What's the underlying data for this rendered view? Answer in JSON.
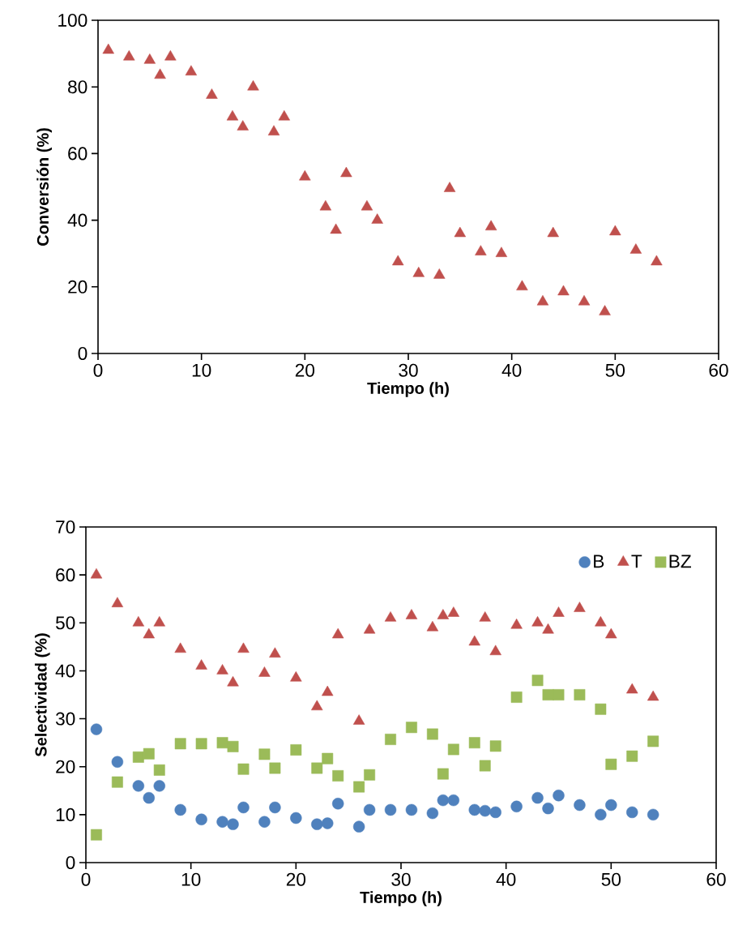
{
  "chart_data": [
    {
      "type": "scatter",
      "xlabel": "Tiempo (h)",
      "ylabel": "Conversión (%)",
      "xlim": [
        0,
        60
      ],
      "ylim": [
        0,
        100
      ],
      "xticks": [
        0,
        10,
        20,
        30,
        40,
        50,
        60
      ],
      "yticks": [
        0,
        20,
        40,
        60,
        80,
        100
      ],
      "grid": false,
      "marker": "triangle",
      "x": [
        1,
        3,
        5,
        6,
        7,
        9,
        11,
        13,
        14,
        15,
        17,
        18,
        20,
        22,
        23,
        24,
        26,
        27,
        29,
        31,
        33,
        34,
        35,
        37,
        38,
        39,
        41,
        43,
        44,
        45,
        47,
        49,
        50,
        52,
        54
      ],
      "series": [
        {
          "color": "#c0504d",
          "marker": "triangle",
          "values": [
            91,
            89,
            88,
            83.5,
            89,
            84.5,
            77.5,
            71,
            68,
            80,
            66.5,
            71,
            53,
            44,
            37,
            54,
            44,
            40,
            27.5,
            24,
            23.5,
            49.5,
            36,
            30.5,
            38,
            30,
            20,
            15.5,
            36,
            18.5,
            15.5,
            12.5,
            36.5,
            31,
            27.5
          ]
        }
      ]
    },
    {
      "type": "scatter",
      "xlabel": "Tiempo (h)",
      "ylabel": "Selectividad (%)",
      "xlim": [
        0,
        60
      ],
      "ylim": [
        0,
        70
      ],
      "xticks": [
        0,
        10,
        20,
        30,
        40,
        50,
        60
      ],
      "yticks": [
        0,
        10,
        20,
        30,
        40,
        50,
        60,
        70
      ],
      "grid": false,
      "legend": "top right",
      "x": [
        1,
        3,
        5,
        6,
        7,
        9,
        11,
        13,
        14,
        15,
        17,
        18,
        20,
        22,
        23,
        24,
        26,
        27,
        29,
        31,
        33,
        34,
        35,
        37,
        38,
        39,
        41,
        43,
        44,
        45,
        47,
        49,
        50,
        52,
        54
      ],
      "series": [
        {
          "name": "B",
          "color": "#4f81bd",
          "marker": "circle",
          "values": [
            27.8,
            21,
            16,
            13.5,
            16,
            11,
            9,
            8.5,
            8,
            11.5,
            8.5,
            11.5,
            9.3,
            8,
            8.2,
            12.3,
            7.5,
            11,
            11,
            11,
            10.3,
            13,
            13,
            11,
            10.8,
            10.5,
            11.7,
            13.5,
            11.3,
            14,
            12,
            10,
            12,
            10.5,
            10
          ]
        },
        {
          "name": "T",
          "color": "#c0504d",
          "marker": "triangle",
          "values": [
            60,
            54,
            50,
            47.5,
            50,
            44.5,
            41,
            40,
            37.5,
            44.5,
            39.5,
            43.5,
            38.5,
            32.5,
            35.5,
            47.5,
            29.5,
            48.5,
            51,
            51.5,
            49,
            51.5,
            52,
            46,
            51,
            44,
            49.5,
            50,
            48.5,
            52,
            53,
            50,
            47.5,
            36,
            34.5
          ]
        },
        {
          "name": "BZ",
          "color": "#9bbb59",
          "marker": "square",
          "values": [
            5.8,
            16.8,
            22,
            22.7,
            19.3,
            24.8,
            24.8,
            25,
            24.2,
            19.5,
            22.6,
            19.7,
            23.5,
            19.7,
            21.7,
            18.1,
            15.8,
            18.3,
            25.7,
            28.2,
            26.8,
            18.5,
            23.6,
            25,
            20.2,
            24.3,
            34.5,
            38,
            35,
            35,
            35,
            32,
            20.5,
            22.2,
            25.3
          ]
        }
      ]
    }
  ]
}
